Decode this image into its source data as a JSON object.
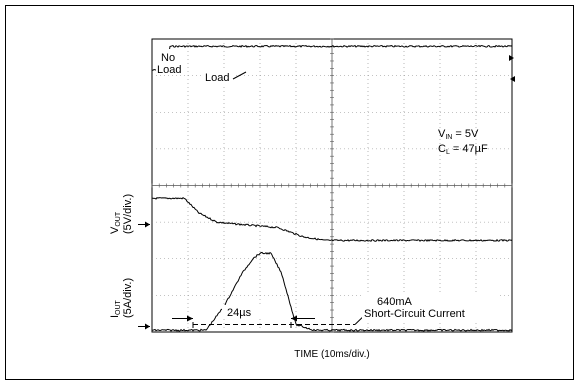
{
  "chart_data": {
    "type": "line",
    "xlabel": "TIME (10ms/div.)",
    "grid": true,
    "x_divisions": 10,
    "y_divisions": 8,
    "series": [
      {
        "key": "load_step",
        "x": [
          0,
          0.4,
          0.5,
          10
        ],
        "y": [
          7.15,
          7.15,
          7.8,
          7.8
        ]
      },
      {
        "key": "vout",
        "x": [
          0,
          0.9,
          1.0,
          1.3,
          1.8,
          2.3,
          3.5,
          4.2,
          4.8,
          5.5,
          10
        ],
        "y": [
          3.65,
          3.65,
          3.55,
          3.25,
          3.0,
          2.95,
          2.85,
          2.6,
          2.5,
          2.5,
          2.5
        ]
      },
      {
        "key": "iout",
        "x": [
          0,
          1.0,
          1.5,
          2.0,
          2.5,
          2.8,
          3.0,
          3.3,
          3.6,
          3.8,
          4.0,
          4.5,
          10
        ],
        "y": [
          0.05,
          0.05,
          0.05,
          0.7,
          1.6,
          2.0,
          2.15,
          2.15,
          1.6,
          0.9,
          0.2,
          0.05,
          0.05
        ]
      }
    ],
    "annotations": {
      "no_load": [
        "No",
        "Load"
      ],
      "load": "Load",
      "vin": {
        "main": "V",
        "sub": "IN",
        "rest": " = 5V"
      },
      "cl": {
        "main": "C",
        "sub": "L",
        "rest": " = 47µF"
      },
      "vout_label": {
        "main": "V",
        "sub": "OUT",
        "scale": "(5V/div.)"
      },
      "iout_label": {
        "main": "I",
        "sub": "OUT",
        "scale": "(5A/div.)"
      },
      "pulse_width": "24µs",
      "current_value": "640mA",
      "current_desc": "Short-Circuit Current"
    }
  }
}
